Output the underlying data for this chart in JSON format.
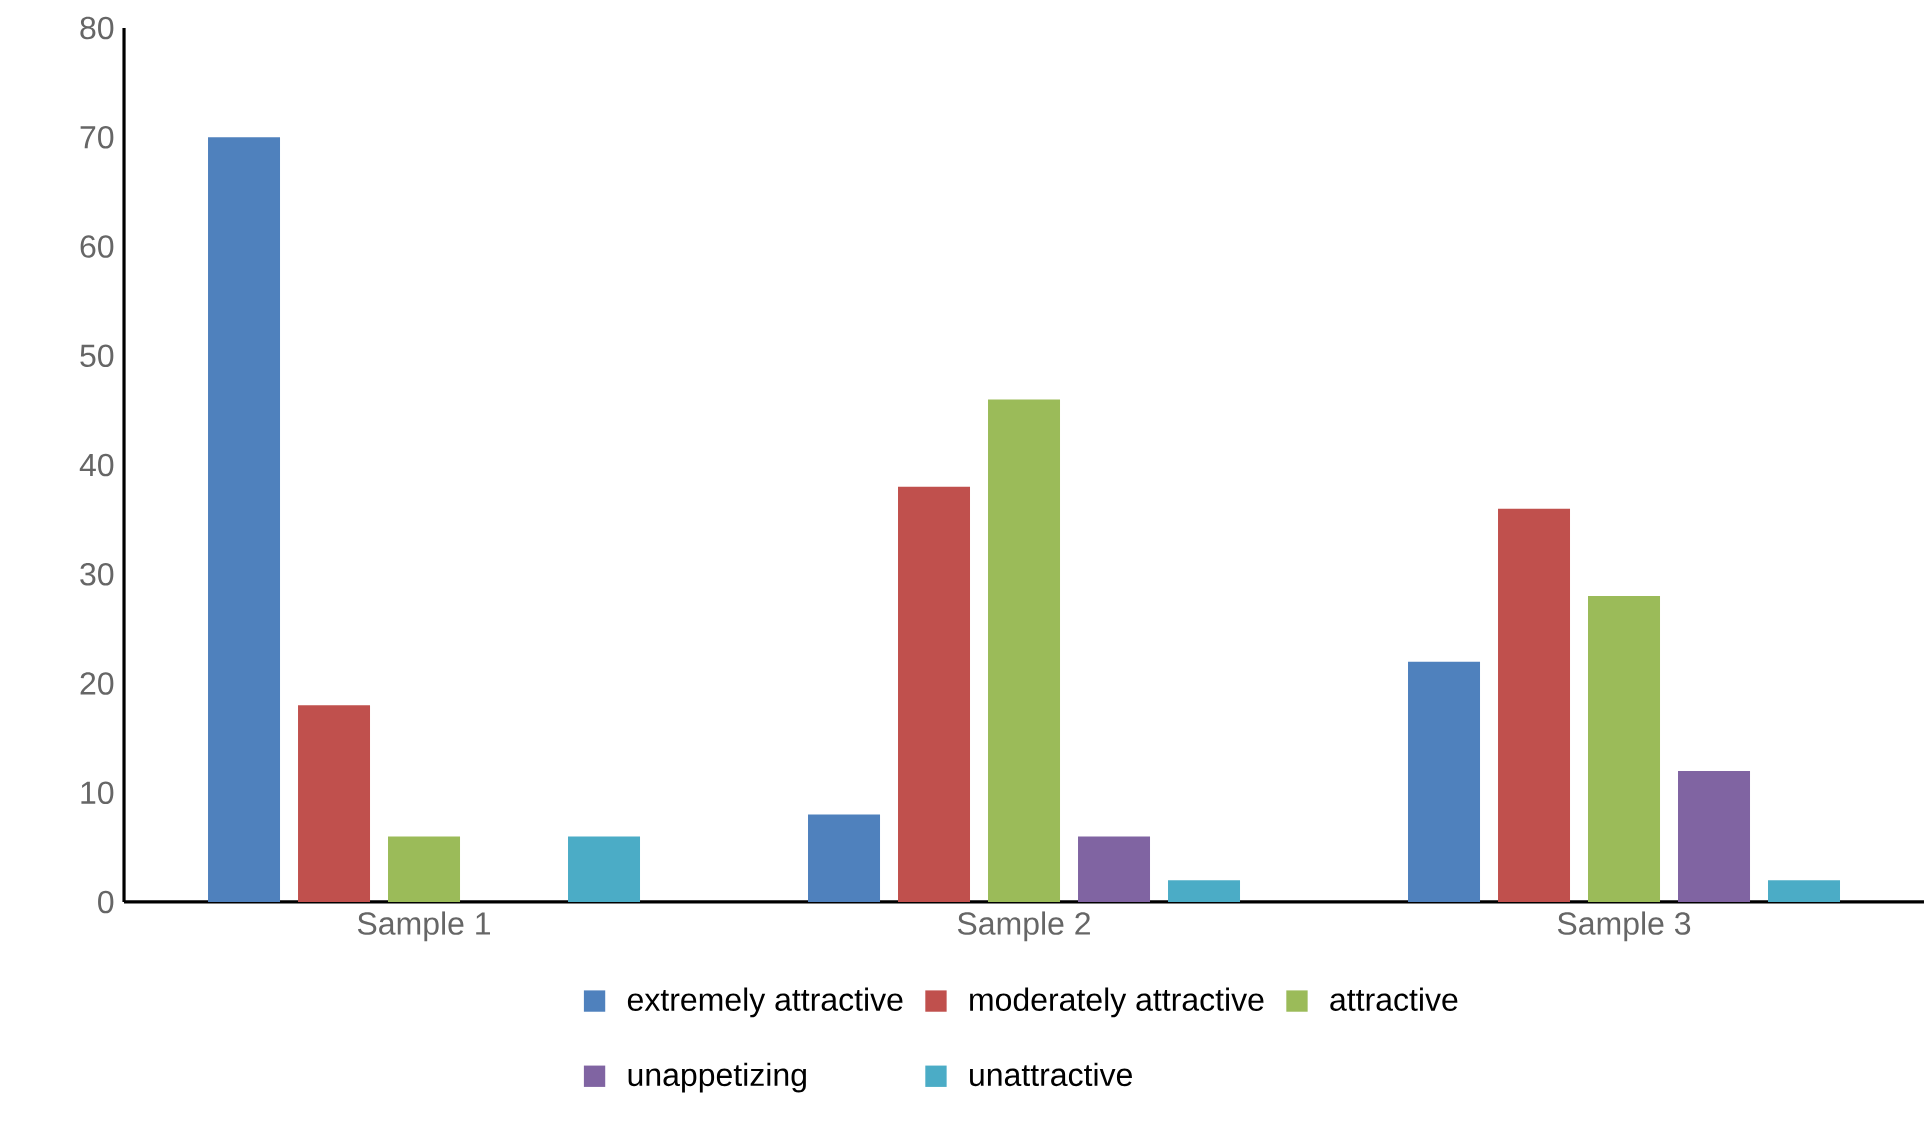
{
  "chart_data": {
    "type": "bar",
    "categories": [
      "Sample 1",
      "Sample 2",
      "Sample 3"
    ],
    "series": [
      {
        "name": "extremely attractive",
        "color": "#4f81bd",
        "values": [
          70,
          8,
          22
        ]
      },
      {
        "name": "moderately attractive",
        "color": "#c0504d",
        "values": [
          18,
          38,
          36
        ]
      },
      {
        "name": "attractive",
        "color": "#9bbb59",
        "values": [
          6,
          46,
          28
        ]
      },
      {
        "name": "unappetizing",
        "color": "#8064a2",
        "values": [
          0,
          6,
          12
        ]
      },
      {
        "name": "unattractive",
        "color": "#4bacc6",
        "values": [
          6,
          2,
          2
        ]
      }
    ],
    "ylim": [
      0,
      80
    ],
    "yticks": [
      0,
      10,
      20,
      30,
      40,
      50,
      60,
      70,
      80
    ],
    "grid": false,
    "legend": "bottom"
  }
}
